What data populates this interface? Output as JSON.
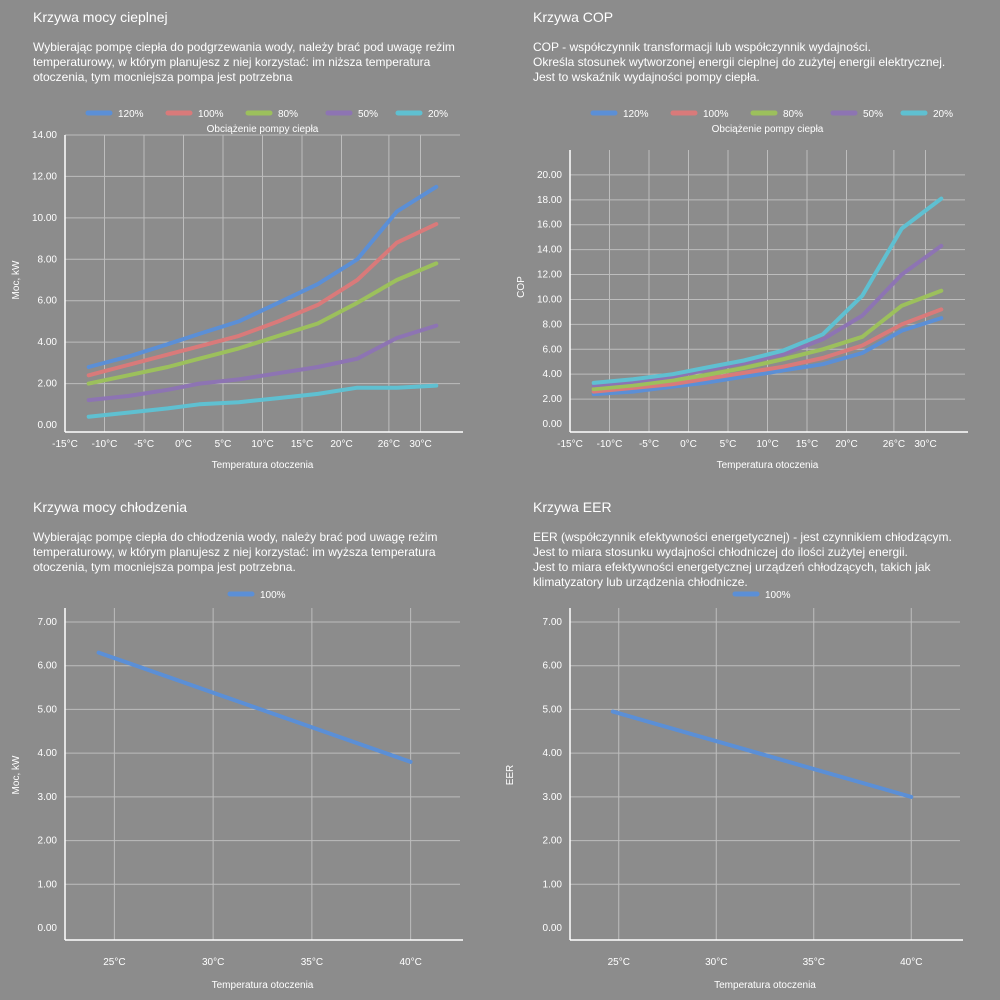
{
  "panels": {
    "heating": {
      "title": "Krzywa mocy cieplnej",
      "description": [
        "Wybierając pompę ciepła do podgrzewania wody, należy brać pod uwagę reżim",
        "temperaturowy, w którym planujesz z niej korzystać: im niższa temperatura",
        "otoczenia, tym mocniejsza pompa jest potrzebna"
      ]
    },
    "cop": {
      "title": "Krzywa COP",
      "description": [
        "COP - współczynnik transformacji lub współczynnik wydajności.",
        "Określa stosunek wytworzonej energii cieplnej do zużytej energii elektrycznej.",
        "Jest to wskaźnik wydajności pompy ciepła."
      ]
    },
    "cooling": {
      "title": "Krzywa mocy chłodzenia",
      "description": [
        "Wybierając pompę ciepła do chłodzenia wody, należy brać pod uwagę reżim",
        "temperaturowy, w którym planujesz z niej korzystać: im wyższa temperatura",
        "otoczenia, tym mocniejsza pompa jest potrzebna."
      ]
    },
    "eer": {
      "title": "Krzywa EER",
      "description": [
        "EER (współczynnik efektywności energetycznej) - jest czynnikiem chłodzącym.",
        "Jest to miara stosunku wydajności chłodniczej do ilości zużytej energii.",
        "Jest to miara efektywności energetycznej urządzeń chłodzących, takich jak",
        "klimatyzatory lub urządzenia chłodnicze."
      ]
    }
  },
  "colors": {
    "background": "#8c8c8c",
    "grid": "#bdbdbd",
    "axis": "#ffffff",
    "text": "#ffffff"
  },
  "chart_data": [
    {
      "id": "heating",
      "type": "line",
      "legend_title": "Obciążenie pompy ciepła",
      "legend_position": "top",
      "xlabel": "Temperatura otoczenia",
      "ylabel": "Moc, kW",
      "xlim": [
        -15,
        35
      ],
      "ylim": [
        0,
        14
      ],
      "x_ticks": [
        -15,
        -10,
        -5,
        0,
        5,
        10,
        15,
        20,
        26,
        30
      ],
      "x_tick_labels": [
        "-15°C",
        "-10°C",
        "-5°C",
        "0°C",
        "5°C",
        "10°C",
        "15°C",
        "20°C",
        "26°C",
        "30°C"
      ],
      "y_ticks": [
        0,
        2,
        4,
        6,
        8,
        10,
        12,
        14
      ],
      "y_tick_labels": [
        "0.00",
        "2.00",
        "4.00",
        "6.00",
        "8.00",
        "10.00",
        "12.00",
        "14.00"
      ],
      "grid": true,
      "x": [
        -12,
        -7,
        -2,
        2,
        7,
        12,
        17,
        22,
        27,
        32
      ],
      "series": [
        {
          "name": "120%",
          "color": "#5b8fd6",
          "values": [
            2.8,
            3.3,
            3.9,
            4.4,
            5.0,
            5.9,
            6.8,
            8.0,
            10.3,
            11.5
          ]
        },
        {
          "name": "100%",
          "color": "#d97a7a",
          "values": [
            2.4,
            2.9,
            3.4,
            3.8,
            4.3,
            5.0,
            5.8,
            7.0,
            8.8,
            9.7
          ]
        },
        {
          "name": "80%",
          "color": "#9cc05c",
          "values": [
            2.0,
            2.4,
            2.8,
            3.2,
            3.7,
            4.3,
            4.9,
            5.9,
            7.0,
            7.8
          ]
        },
        {
          "name": "50%",
          "color": "#8d74b3",
          "values": [
            1.2,
            1.4,
            1.7,
            2.0,
            2.2,
            2.5,
            2.8,
            3.2,
            4.2,
            4.8
          ]
        },
        {
          "name": "20%",
          "color": "#5fc0d1",
          "values": [
            0.4,
            0.6,
            0.8,
            1.0,
            1.1,
            1.3,
            1.5,
            1.8,
            1.8,
            1.9
          ]
        }
      ]
    },
    {
      "id": "cop",
      "type": "line",
      "legend_title": "Obciążenie pompy ciepła",
      "legend_position": "top",
      "xlabel": "Temperatura otoczenia",
      "ylabel": "COP",
      "xlim": [
        -15,
        35
      ],
      "ylim": [
        0,
        22
      ],
      "x_ticks": [
        -15,
        -10,
        -5,
        0,
        5,
        10,
        15,
        20,
        26,
        30
      ],
      "x_tick_labels": [
        "-15°C",
        "-10°C",
        "-5°C",
        "0°C",
        "5°C",
        "10°C",
        "15°C",
        "20°C",
        "26°C",
        "30°C"
      ],
      "y_ticks": [
        0,
        2,
        4,
        6,
        8,
        10,
        12,
        14,
        16,
        18,
        20
      ],
      "y_tick_labels": [
        "0.00",
        "2.00",
        "4.00",
        "6.00",
        "8.00",
        "10.00",
        "12.00",
        "14.00",
        "16.00",
        "18.00",
        "20.00"
      ],
      "grid": true,
      "x": [
        -12,
        -7,
        -2,
        2,
        7,
        12,
        17,
        22,
        27,
        32
      ],
      "series": [
        {
          "name": "120%",
          "color": "#5b8fd6",
          "values": [
            2.4,
            2.6,
            3.0,
            3.3,
            3.8,
            4.3,
            4.8,
            5.7,
            7.5,
            8.5
          ]
        },
        {
          "name": "100%",
          "color": "#d97a7a",
          "values": [
            2.6,
            2.9,
            3.2,
            3.6,
            4.1,
            4.6,
            5.3,
            6.3,
            8.0,
            9.2
          ]
        },
        {
          "name": "80%",
          "color": "#9cc05c",
          "values": [
            2.8,
            3.1,
            3.5,
            3.9,
            4.5,
            5.2,
            6.0,
            7.0,
            9.5,
            10.7
          ]
        },
        {
          "name": "50%",
          "color": "#8d74b3",
          "values": [
            3.1,
            3.4,
            3.8,
            4.3,
            4.9,
            5.6,
            6.8,
            8.7,
            12.0,
            14.3
          ]
        },
        {
          "name": "20%",
          "color": "#5fc0d1",
          "values": [
            3.3,
            3.6,
            4.0,
            4.5,
            5.1,
            5.9,
            7.2,
            10.3,
            15.7,
            18.1
          ]
        }
      ]
    },
    {
      "id": "cooling",
      "type": "line",
      "legend_position": "top",
      "xlabel": "Temperatura otoczenia",
      "ylabel": "Moc, kW",
      "xlim": [
        22.5,
        42.5
      ],
      "ylim": [
        0,
        7
      ],
      "x_ticks": [
        25,
        30,
        35,
        40
      ],
      "x_tick_labels": [
        "25°C",
        "30°C",
        "35°C",
        "40°C"
      ],
      "y_ticks": [
        0,
        1,
        2,
        3,
        4,
        5,
        6,
        7
      ],
      "y_tick_labels": [
        "0.00",
        "1.00",
        "2.00",
        "3.00",
        "4.00",
        "5.00",
        "6.00",
        "7.00"
      ],
      "grid": true,
      "x": [
        24.2,
        40
      ],
      "series": [
        {
          "name": "100%",
          "color": "#5b8fd6",
          "values": [
            6.3,
            3.8
          ]
        }
      ]
    },
    {
      "id": "eer",
      "type": "line",
      "legend_position": "top",
      "xlabel": "Temperatura otoczenia",
      "ylabel": "EER",
      "xlim": [
        22.5,
        42.5
      ],
      "ylim": [
        0,
        7
      ],
      "x_ticks": [
        25,
        30,
        35,
        40
      ],
      "x_tick_labels": [
        "25°C",
        "30°C",
        "35°C",
        "40°C"
      ],
      "y_ticks": [
        0,
        1,
        2,
        3,
        4,
        5,
        6,
        7
      ],
      "y_tick_labels": [
        "0.00",
        "1.00",
        "2.00",
        "3.00",
        "4.00",
        "5.00",
        "6.00",
        "7.00"
      ],
      "grid": true,
      "x": [
        24.7,
        40
      ],
      "series": [
        {
          "name": "100%",
          "color": "#5b8fd6",
          "values": [
            4.95,
            3.0
          ]
        }
      ]
    }
  ]
}
